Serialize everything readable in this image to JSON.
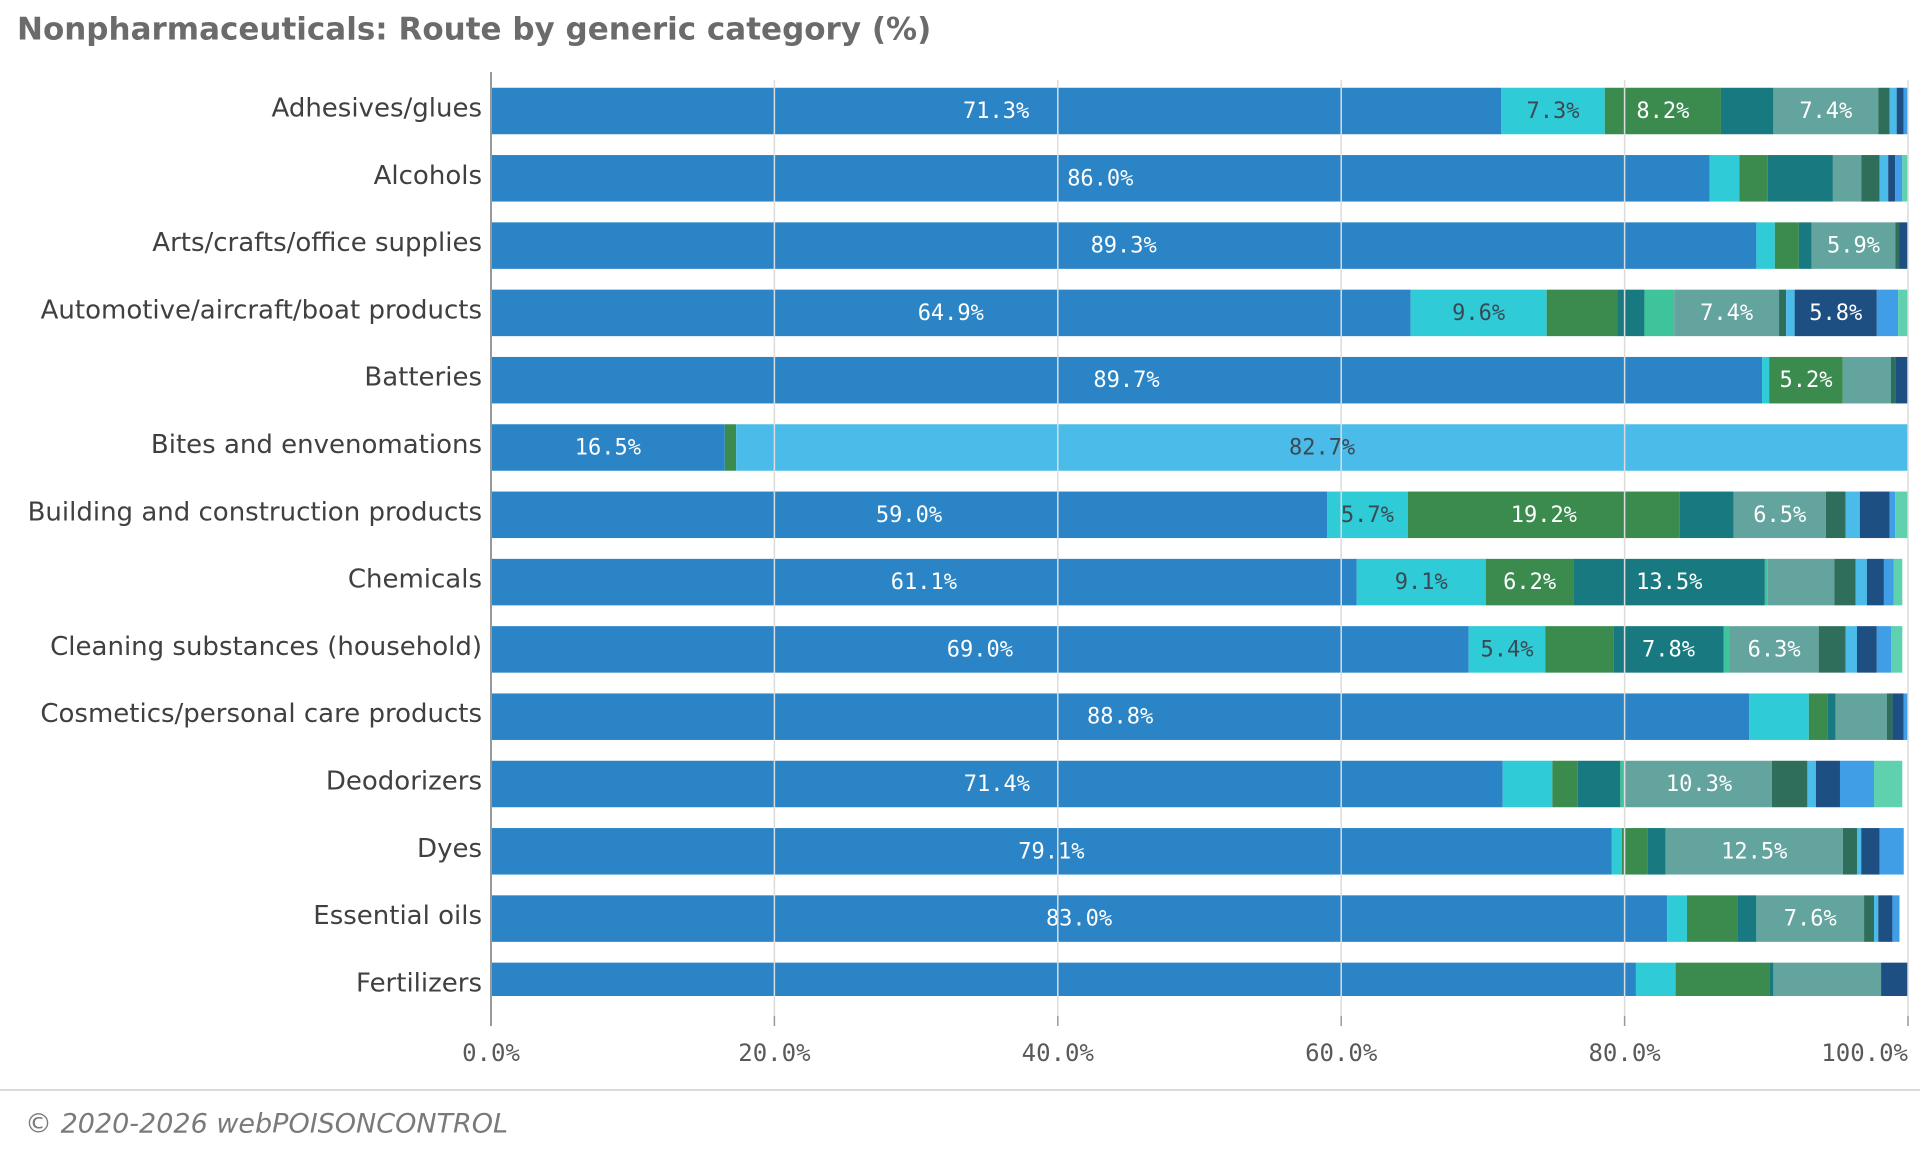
{
  "chart_data": {
    "type": "stacked-barh",
    "title": "Nonpharmaceuticals: Route by generic category (%)",
    "categories": [
      "Adhesives/glues",
      "Alcohols",
      "Arts/crafts/office supplies",
      "Automotive/aircraft/boat products",
      "Batteries",
      "Bites and envenomations",
      "Building and construction products",
      "Chemicals",
      "Cleaning substances (household)",
      "Cosmetics/personal care products",
      "Deodorizers",
      "Dyes",
      "Essential oils",
      "Fertilizers"
    ],
    "series": [
      {
        "color": "#2a84c6",
        "values": [
          71.3,
          86.0,
          89.3,
          64.9,
          89.7,
          16.5,
          59.0,
          61.1,
          69.0,
          88.8,
          71.4,
          79.1,
          83.0,
          80.8
        ],
        "value_labels": [
          "71.3%",
          "86.0%",
          "89.3%",
          "64.9%",
          "89.7%",
          "16.5%",
          "59.0%",
          "61.1%",
          "69.0%",
          "88.8%",
          "71.4%",
          "79.1%",
          "83.0%",
          null
        ]
      },
      {
        "color": "#2fcbd6",
        "values": [
          7.3,
          2.1,
          1.3,
          9.6,
          0.5,
          0,
          5.7,
          9.1,
          5.4,
          4.2,
          3.5,
          0.7,
          1.4,
          2.8
        ],
        "value_labels": [
          "7.3%",
          null,
          null,
          "9.6%",
          null,
          null,
          "5.7%",
          "9.1%",
          "5.4%",
          null,
          null,
          null,
          null,
          null
        ]
      },
      {
        "color": "#3b8b4f",
        "values": [
          8.2,
          2.0,
          1.7,
          5.0,
          5.2,
          0.8,
          19.2,
          6.2,
          4.8,
          1.3,
          1.8,
          1.8,
          3.6,
          6.6
        ],
        "value_labels": [
          "8.2%",
          null,
          null,
          null,
          "5.2%",
          null,
          "19.2%",
          "6.2%",
          null,
          null,
          null,
          null,
          null,
          null
        ]
      },
      {
        "color": "#187a80",
        "values": [
          3.7,
          4.6,
          0.9,
          1.9,
          0,
          0,
          3.8,
          13.5,
          7.8,
          0.6,
          3.0,
          1.3,
          1.3,
          0.3
        ],
        "value_labels": [
          null,
          null,
          null,
          null,
          null,
          null,
          null,
          "13.5%",
          "7.8%",
          null,
          null,
          null,
          null,
          null
        ]
      },
      {
        "color": "#3fc39a",
        "values": [
          0,
          0,
          0,
          2.1,
          0,
          0,
          0,
          0.2,
          0.4,
          0,
          0.4,
          0,
          0,
          0
        ]
      },
      {
        "color": "#63a49e",
        "values": [
          7.4,
          2.0,
          5.9,
          7.4,
          3.4,
          0,
          6.5,
          4.7,
          6.3,
          3.6,
          10.3,
          12.5,
          7.6,
          7.6
        ],
        "value_labels": [
          "7.4%",
          null,
          "5.9%",
          "7.4%",
          null,
          null,
          "6.5%",
          null,
          "6.3%",
          null,
          "10.3%",
          "12.5%",
          "7.6%",
          null
        ]
      },
      {
        "color": "#2f6e5a",
        "values": [
          0.8,
          1.3,
          0.3,
          0.5,
          0.3,
          0,
          1.4,
          1.5,
          1.9,
          0.4,
          2.5,
          1.0,
          0.7,
          0
        ]
      },
      {
        "color": "#4bbbe9",
        "values": [
          0.5,
          0.6,
          0,
          0.6,
          0,
          82.7,
          1.0,
          0.8,
          0.8,
          0,
          0.6,
          0.3,
          0.3,
          0
        ],
        "value_labels": [
          null,
          null,
          null,
          null,
          null,
          "82.7%",
          null,
          null,
          null,
          null,
          null,
          null,
          null,
          null
        ]
      },
      {
        "color": "#1d4f82",
        "values": [
          0.5,
          0.5,
          0.6,
          5.8,
          0.9,
          0,
          2.1,
          1.2,
          1.4,
          0.8,
          1.7,
          1.3,
          1.0,
          1.9
        ],
        "value_labels": [
          null,
          null,
          null,
          "5.8%",
          null,
          null,
          null,
          null,
          null,
          null,
          null,
          null,
          null,
          null
        ]
      },
      {
        "color": "#3f9ee6",
        "values": [
          0.3,
          0.5,
          0,
          1.5,
          0,
          0,
          0.4,
          0.7,
          1.0,
          0.3,
          2.4,
          1.7,
          0.5,
          0
        ]
      },
      {
        "color": "#5fd1ae",
        "values": [
          0,
          0.4,
          0,
          0.7,
          0,
          0,
          0.9,
          0.6,
          0.8,
          0,
          2.0,
          0,
          0,
          0
        ]
      }
    ],
    "xlim": [
      0,
      100
    ],
    "xticks": [
      {
        "value": 0,
        "label": "0.0%"
      },
      {
        "value": 20,
        "label": "20.0%"
      },
      {
        "value": 40,
        "label": "40.0%"
      },
      {
        "value": 60,
        "label": "60.0%"
      },
      {
        "value": 80,
        "label": "80.0%"
      },
      {
        "value": 100,
        "label": "100.0%"
      }
    ],
    "grid": true
  },
  "footer": "© 2020-2026 webPOISONCONTROL"
}
